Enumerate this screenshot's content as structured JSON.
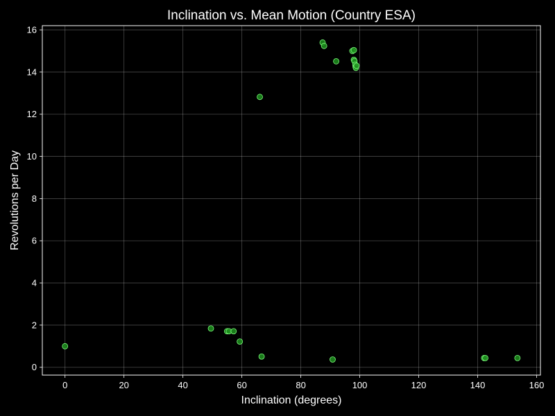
{
  "chart_data": {
    "type": "scatter",
    "title": "Inclination vs. Mean Motion (Country ESA)",
    "xlabel": "Inclination (degrees)",
    "ylabel": "Revolutions per Day",
    "xlim": [
      -7.7,
      161.3
    ],
    "ylim": [
      -0.37,
      16.2
    ],
    "xticks": [
      0,
      20,
      40,
      60,
      80,
      100,
      120,
      140,
      160
    ],
    "yticks": [
      0,
      2,
      4,
      6,
      8,
      10,
      12,
      14,
      16
    ],
    "grid": true,
    "colors": {
      "background": "#000000",
      "text": "#ffffff",
      "marker_fill": "#1f8f1f",
      "marker_edge": "#7dff7d"
    },
    "series": [
      {
        "points": [
          {
            "x": 0.0,
            "y": 1.0
          },
          {
            "x": 49.5,
            "y": 1.84
          },
          {
            "x": 55.0,
            "y": 1.71
          },
          {
            "x": 55.6,
            "y": 1.71
          },
          {
            "x": 57.2,
            "y": 1.71
          },
          {
            "x": 59.3,
            "y": 1.22
          },
          {
            "x": 66.1,
            "y": 12.82
          },
          {
            "x": 66.7,
            "y": 0.51
          },
          {
            "x": 87.4,
            "y": 15.4
          },
          {
            "x": 87.9,
            "y": 15.24
          },
          {
            "x": 90.8,
            "y": 0.37
          },
          {
            "x": 92.0,
            "y": 14.51
          },
          {
            "x": 97.5,
            "y": 15.0
          },
          {
            "x": 98.0,
            "y": 15.04
          },
          {
            "x": 98.0,
            "y": 14.58
          },
          {
            "x": 98.2,
            "y": 14.52
          },
          {
            "x": 98.5,
            "y": 14.35
          },
          {
            "x": 98.6,
            "y": 14.25
          },
          {
            "x": 98.7,
            "y": 14.2
          },
          {
            "x": 98.9,
            "y": 14.3
          },
          {
            "x": 142.2,
            "y": 0.44
          },
          {
            "x": 142.6,
            "y": 0.44
          },
          {
            "x": 153.5,
            "y": 0.44
          }
        ]
      }
    ]
  }
}
